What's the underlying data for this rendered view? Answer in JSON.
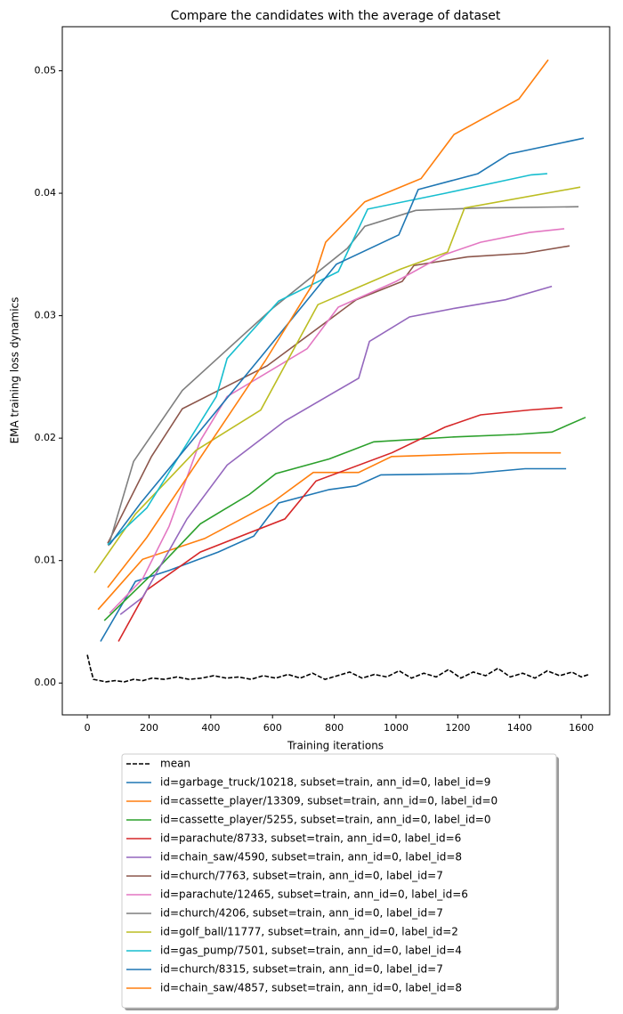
{
  "chart_data": {
    "type": "line",
    "title": "Compare the candidates with the average of dataset",
    "xlabel": "Training iterations",
    "ylabel": "EMA training loss dynamics",
    "xlim": [
      -81,
      1692
    ],
    "ylim": [
      -0.0026,
      0.0536
    ],
    "xticks": [
      0,
      200,
      400,
      600,
      800,
      1000,
      1200,
      1400,
      1600
    ],
    "yticks": [
      {
        "value": 0,
        "label": "0.00"
      },
      0.01,
      0.02,
      0.03,
      0.04,
      0.05
    ],
    "grid": false,
    "legend": "lower center",
    "series": [
      {
        "name": "mean",
        "color": "#000000",
        "linestyle": "--",
        "x": [
          0,
          10,
          20,
          40,
          60,
          90,
          120,
          150,
          180,
          210,
          250,
          290,
          330,
          370,
          410,
          450,
          490,
          530,
          570,
          610,
          650,
          690,
          730,
          770,
          810,
          850,
          890,
          930,
          970,
          1010,
          1050,
          1090,
          1130,
          1170,
          1210,
          1250,
          1290,
          1330,
          1370,
          1410,
          1450,
          1490,
          1530,
          1570,
          1600,
          1625
        ],
        "values": [
          0.0023,
          0.0012,
          0.0003,
          0.0002,
          0.0001,
          0.0002,
          0.0001,
          0.0003,
          0.0002,
          0.0004,
          0.0003,
          0.0005,
          0.0003,
          0.0004,
          0.0006,
          0.0004,
          0.0005,
          0.0003,
          0.0006,
          0.0004,
          0.0007,
          0.0004,
          0.0008,
          0.0003,
          0.0006,
          0.0009,
          0.0004,
          0.0007,
          0.0005,
          0.001,
          0.0004,
          0.0008,
          0.0005,
          0.0011,
          0.0004,
          0.0009,
          0.0006,
          0.0012,
          0.0005,
          0.0008,
          0.0004,
          0.001,
          0.0006,
          0.0009,
          0.0005,
          0.0007
        ]
      },
      {
        "name": "id=garbage_truck/10218, subset=train, ann_id=0, label_id=9",
        "color": "#1f77b4",
        "x": [
          43,
          156,
          265,
          424,
          539,
          620,
          784,
          871,
          951,
          1240,
          1418,
          1551
        ],
        "values": [
          0.0034,
          0.0083,
          0.0092,
          0.0107,
          0.012,
          0.0147,
          0.0158,
          0.0161,
          0.017,
          0.0171,
          0.0175,
          0.0175
        ]
      },
      {
        "name": "id=cassette_player/13309, subset=train, ann_id=0, label_id=0",
        "color": "#ff7f0e",
        "x": [
          35,
          179,
          380,
          597,
          732,
          879,
          986,
          1231,
          1361,
          1476,
          1534
        ],
        "values": [
          0.006,
          0.0101,
          0.0118,
          0.0147,
          0.0172,
          0.0172,
          0.0185,
          0.0187,
          0.0188,
          0.0188,
          0.0188
        ]
      },
      {
        "name": "id=cassette_player/5255, subset=train, ann_id=0, label_id=0",
        "color": "#2ca02c",
        "x": [
          55,
          222,
          366,
          525,
          611,
          784,
          928,
          1188,
          1389,
          1505,
          1614
        ],
        "values": [
          0.0051,
          0.0092,
          0.013,
          0.0154,
          0.0171,
          0.0183,
          0.0197,
          0.0201,
          0.0203,
          0.0205,
          0.0217
        ]
      },
      {
        "name": "id=parachute/8733, subset=train, ann_id=0, label_id=6",
        "color": "#d62728",
        "x": [
          101,
          193,
          366,
          640,
          741,
          986,
          1159,
          1274,
          1433,
          1539
        ],
        "values": [
          0.0034,
          0.0076,
          0.0107,
          0.0134,
          0.0165,
          0.0188,
          0.0209,
          0.0219,
          0.0223,
          0.0225
        ]
      },
      {
        "name": "id=chain_saw/4590, subset=train, ann_id=0, label_id=8",
        "color": "#9467bd",
        "x": [
          107,
          179,
          323,
          453,
          640,
          879,
          914,
          1044,
          1188,
          1355,
          1505
        ],
        "values": [
          0.0056,
          0.007,
          0.0134,
          0.0178,
          0.0214,
          0.0249,
          0.0279,
          0.0299,
          0.0306,
          0.0313,
          0.0324
        ]
      },
      {
        "name": "id=church/7763, subset=train, ann_id=0, label_id=7",
        "color": "#8c564b",
        "x": [
          66,
          208,
          308,
          582,
          871,
          1020,
          1058,
          1231,
          1418,
          1562
        ],
        "values": [
          0.0114,
          0.0185,
          0.0224,
          0.0259,
          0.0313,
          0.0328,
          0.0341,
          0.0348,
          0.0351,
          0.0357
        ]
      },
      {
        "name": "id=parachute/12465, subset=train, ann_id=0, label_id=6",
        "color": "#e377c2",
        "x": [
          72,
          179,
          265,
          366,
          453,
          712,
          813,
          1000,
          1159,
          1274,
          1433,
          1545
        ],
        "values": [
          0.0057,
          0.0085,
          0.0128,
          0.0198,
          0.0234,
          0.0273,
          0.0307,
          0.0328,
          0.035,
          0.036,
          0.0368,
          0.0371
        ]
      },
      {
        "name": "id=church/4206, subset=train, ann_id=0, label_id=7",
        "color": "#7f7f7f",
        "x": [
          69,
          150,
          308,
          600,
          842,
          899,
          1064,
          1274,
          1591
        ],
        "values": [
          0.0112,
          0.0181,
          0.0239,
          0.0306,
          0.0355,
          0.0373,
          0.0386,
          0.0388,
          0.0389
        ]
      },
      {
        "name": "id=golf_ball/11777, subset=train, ann_id=0, label_id=2",
        "color": "#bcbd22",
        "x": [
          23,
          156,
          352,
          562,
          747,
          1015,
          1167,
          1222,
          1597
        ],
        "values": [
          0.009,
          0.0138,
          0.019,
          0.0223,
          0.0309,
          0.0338,
          0.0352,
          0.0388,
          0.0405
        ]
      },
      {
        "name": "id=gas_pump/7501, subset=train, ann_id=0, label_id=4",
        "color": "#17becf",
        "x": [
          66,
          193,
          418,
          453,
          620,
          813,
          908,
          1159,
          1438,
          1490
        ],
        "values": [
          0.0113,
          0.0143,
          0.0234,
          0.0265,
          0.0312,
          0.0336,
          0.0387,
          0.04,
          0.0415,
          0.0416
        ]
      },
      {
        "name": "id=church/8315, subset=train, ann_id=0, label_id=7",
        "color": "#1f77b4",
        "x": [
          72,
          173,
          568,
          807,
          1009,
          1072,
          1265,
          1366,
          1608
        ],
        "values": [
          0.0113,
          0.0147,
          0.0268,
          0.0342,
          0.0366,
          0.0403,
          0.0416,
          0.0432,
          0.0445
        ]
      },
      {
        "name": "id=chain_saw/4857, subset=train, ann_id=0, label_id=8",
        "color": "#ff7f0e",
        "x": [
          66,
          193,
          576,
          726,
          772,
          899,
          1081,
          1188,
          1398,
          1493
        ],
        "values": [
          0.0078,
          0.0119,
          0.0263,
          0.0324,
          0.036,
          0.0393,
          0.0412,
          0.0448,
          0.0477,
          0.0509
        ]
      }
    ]
  }
}
